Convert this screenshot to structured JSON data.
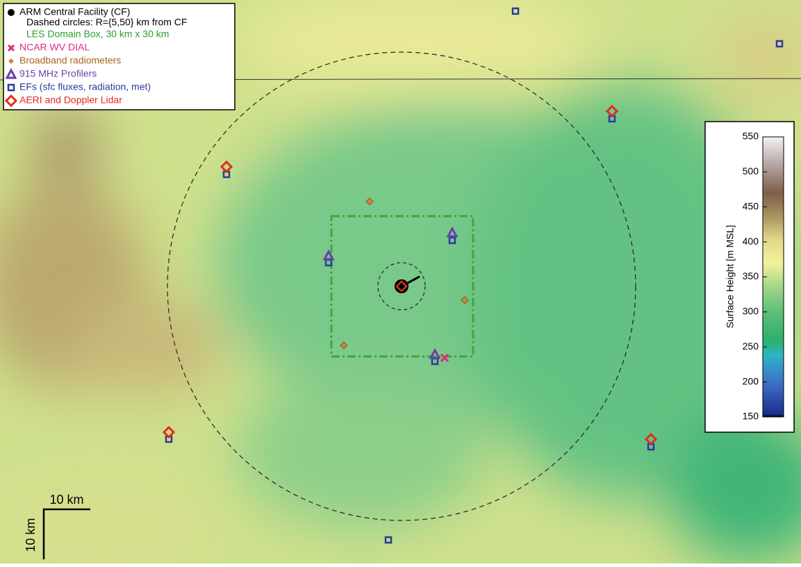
{
  "legend": {
    "items": [
      "ARM Central Facility (CF)",
      "Dashed circles: R={5,50} km from CF",
      "LES Domain Box, 30 km x 30 km",
      "NCAR WV DIAL",
      "Broadband radiometers",
      "915 MHz Profilers",
      "EFs (sfc fluxes, radiation, met)",
      "AERI and Doppler Lidar"
    ]
  },
  "colorbar": {
    "label": "Surface Height [m MSL]",
    "lim": [
      150,
      550
    ],
    "ticks": [
      150,
      200,
      250,
      300,
      350,
      400,
      450,
      500,
      550
    ]
  },
  "scale_bar": {
    "x_label": "10 km",
    "y_label": "10 km"
  }
}
